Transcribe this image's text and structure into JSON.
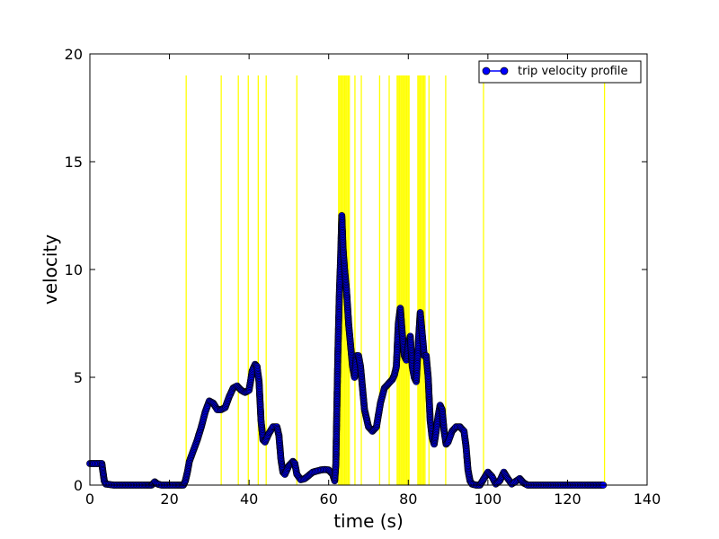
{
  "chart_data": {
    "type": "line",
    "xlabel": "time (s)",
    "ylabel": "velocity",
    "xlim": [
      0,
      140
    ],
    "ylim": [
      0,
      20
    ],
    "x_ticks": [
      0,
      20,
      40,
      60,
      80,
      100,
      120,
      140
    ],
    "y_ticks": [
      0,
      5,
      10,
      15,
      20
    ],
    "grid": false,
    "legend_position": "top-right",
    "colors": {
      "series_face": "#0000ff",
      "series_edge": "#000000",
      "marker_lines": "#ffff00",
      "frame": "#000000"
    },
    "series": [
      {
        "name": "trip velocity profile",
        "marker": "circle",
        "points": [
          [
            0,
            1.0
          ],
          [
            1,
            1.0
          ],
          [
            2,
            1.0
          ],
          [
            3,
            1.0
          ],
          [
            3.3,
            0.6
          ],
          [
            3.6,
            0.2
          ],
          [
            4,
            0.05
          ],
          [
            6,
            0.0
          ],
          [
            10,
            0.0
          ],
          [
            14,
            0.0
          ],
          [
            15.5,
            0.0
          ],
          [
            16.3,
            0.15
          ],
          [
            17,
            0.05
          ],
          [
            18,
            0.0
          ],
          [
            20,
            0.0
          ],
          [
            22,
            0.0
          ],
          [
            23.5,
            0.0
          ],
          [
            24,
            0.2
          ],
          [
            24.5,
            0.6
          ],
          [
            25,
            1.1
          ],
          [
            26,
            1.6
          ],
          [
            27,
            2.1
          ],
          [
            28,
            2.7
          ],
          [
            29,
            3.4
          ],
          [
            30,
            3.9
          ],
          [
            31,
            3.8
          ],
          [
            32,
            3.5
          ],
          [
            33,
            3.5
          ],
          [
            34,
            3.6
          ],
          [
            35,
            4.1
          ],
          [
            36,
            4.5
          ],
          [
            37,
            4.6
          ],
          [
            38,
            4.4
          ],
          [
            39,
            4.3
          ],
          [
            40,
            4.4
          ],
          [
            40.8,
            5.3
          ],
          [
            41.5,
            5.6
          ],
          [
            42,
            5.5
          ],
          [
            42.5,
            4.8
          ],
          [
            43,
            3.0
          ],
          [
            43.5,
            2.1
          ],
          [
            44,
            2.0
          ],
          [
            45,
            2.4
          ],
          [
            46,
            2.7
          ],
          [
            47,
            2.7
          ],
          [
            47.5,
            2.3
          ],
          [
            48,
            1.2
          ],
          [
            48.5,
            0.6
          ],
          [
            49,
            0.5
          ],
          [
            50,
            0.9
          ],
          [
            51,
            1.1
          ],
          [
            51.5,
            1.0
          ],
          [
            52,
            0.5
          ],
          [
            53,
            0.25
          ],
          [
            54,
            0.3
          ],
          [
            55,
            0.45
          ],
          [
            56,
            0.6
          ],
          [
            57,
            0.65
          ],
          [
            58,
            0.7
          ],
          [
            59,
            0.72
          ],
          [
            60,
            0.7
          ],
          [
            61,
            0.5
          ],
          [
            61.5,
            0.2
          ],
          [
            61.8,
            1.0
          ],
          [
            62,
            3.0
          ],
          [
            62.3,
            6.0
          ],
          [
            62.7,
            9.0
          ],
          [
            63,
            10.5
          ],
          [
            63.3,
            12.5
          ],
          [
            63.6,
            11.0
          ],
          [
            64,
            10.0
          ],
          [
            64.5,
            9.0
          ],
          [
            65,
            7.5
          ],
          [
            65.5,
            6.5
          ],
          [
            66,
            5.5
          ],
          [
            66.5,
            5.0
          ],
          [
            67,
            6.0
          ],
          [
            67.5,
            6.0
          ],
          [
            68,
            5.5
          ],
          [
            68.5,
            4.5
          ],
          [
            69,
            3.5
          ],
          [
            70,
            2.7
          ],
          [
            71,
            2.5
          ],
          [
            72,
            2.7
          ],
          [
            73,
            3.8
          ],
          [
            74,
            4.5
          ],
          [
            75,
            4.7
          ],
          [
            76,
            4.9
          ],
          [
            76.5,
            5.1
          ],
          [
            77,
            5.5
          ],
          [
            77.5,
            7.5
          ],
          [
            78,
            8.2
          ],
          [
            78.5,
            7.0
          ],
          [
            79,
            6.0
          ],
          [
            79.5,
            5.8
          ],
          [
            80,
            6.5
          ],
          [
            80.5,
            6.9
          ],
          [
            81,
            5.5
          ],
          [
            81.5,
            5.0
          ],
          [
            82,
            4.8
          ],
          [
            82.5,
            6.5
          ],
          [
            83,
            8.0
          ],
          [
            83.5,
            7.0
          ],
          [
            84,
            6.0
          ],
          [
            84.5,
            6.0
          ],
          [
            85,
            5.0
          ],
          [
            85.5,
            3.0
          ],
          [
            86,
            2.2
          ],
          [
            86.5,
            1.9
          ],
          [
            87,
            2.5
          ],
          [
            87.5,
            3.2
          ],
          [
            88,
            3.7
          ],
          [
            88.5,
            3.5
          ],
          [
            89,
            2.5
          ],
          [
            89.5,
            1.9
          ],
          [
            90,
            2.0
          ],
          [
            91,
            2.5
          ],
          [
            92,
            2.7
          ],
          [
            93,
            2.7
          ],
          [
            94,
            2.5
          ],
          [
            94.5,
            1.8
          ],
          [
            95,
            0.7
          ],
          [
            95.5,
            0.2
          ],
          [
            96,
            0.05
          ],
          [
            97,
            0.0
          ],
          [
            98,
            0.0
          ],
          [
            99,
            0.3
          ],
          [
            100,
            0.6
          ],
          [
            101,
            0.4
          ],
          [
            102,
            0.05
          ],
          [
            103,
            0.2
          ],
          [
            104,
            0.6
          ],
          [
            105,
            0.3
          ],
          [
            106,
            0.05
          ],
          [
            108,
            0.3
          ],
          [
            109,
            0.1
          ],
          [
            110,
            0.0
          ],
          [
            115,
            0.0
          ],
          [
            120,
            0.0
          ],
          [
            125,
            0.0
          ],
          [
            129,
            0.0
          ]
        ]
      }
    ],
    "vertical_markers": {
      "ymax": 19,
      "x": [
        24.2,
        33,
        37.3,
        39.8,
        42.3,
        44.3,
        52,
        62.5,
        62.8,
        63.1,
        63.4,
        63.7,
        64,
        64.3,
        64.6,
        64.9,
        65.2,
        66.6,
        68.2,
        72.8,
        75.2,
        77.2,
        77.5,
        77.8,
        78.1,
        78.4,
        78.7,
        79,
        79.3,
        79.6,
        79.9,
        80.2,
        82.4,
        82.7,
        83,
        83.3,
        83.6,
        83.9,
        84.2,
        85.2,
        89.4,
        98.9,
        129.3
      ]
    }
  }
}
